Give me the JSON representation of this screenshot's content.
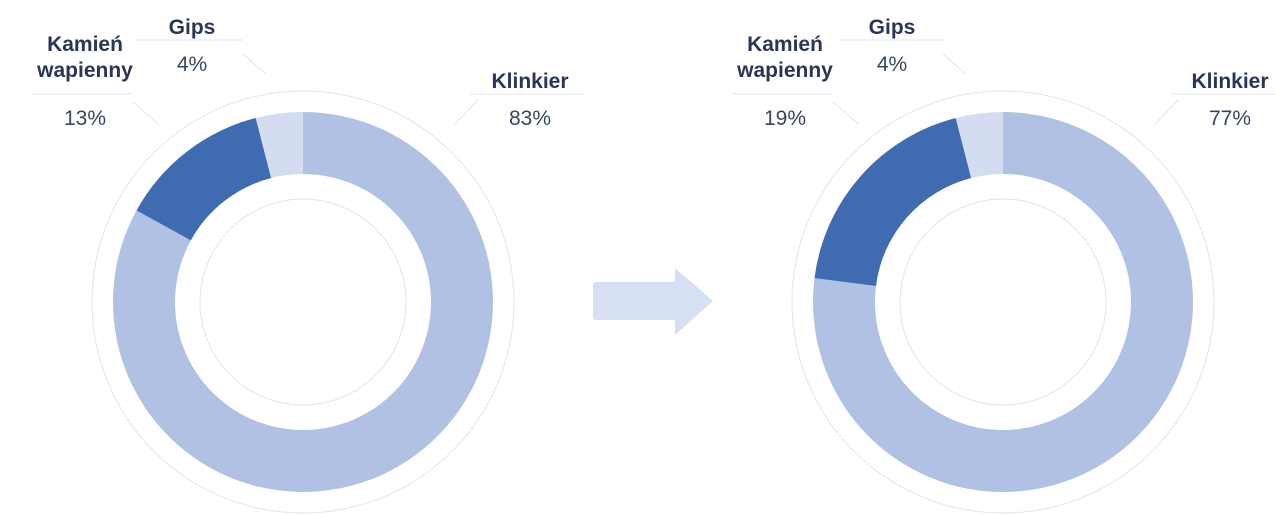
{
  "chart_data": [
    {
      "type": "pie",
      "donut": true,
      "categories": [
        "Klinkier",
        "Kamień wapienny",
        "Gips"
      ],
      "values": [
        83,
        13,
        4
      ],
      "value_labels": [
        "83%",
        "13%",
        "4%"
      ],
      "colors": [
        "#b0c1e4",
        "#3f6cb1",
        "#d3dcf0"
      ]
    },
    {
      "type": "pie",
      "donut": true,
      "categories": [
        "Klinkier",
        "Kamień wapienny",
        "Gips"
      ],
      "values": [
        77,
        19,
        4
      ],
      "value_labels": [
        "77%",
        "19%",
        "4%"
      ],
      "colors": [
        "#b0c1e4",
        "#3f6cb1",
        "#d3dcf0"
      ]
    }
  ]
}
